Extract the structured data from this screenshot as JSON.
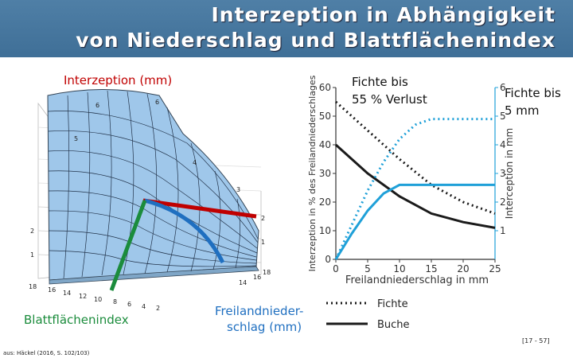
{
  "slide": {
    "title_line1": "Interzeption in Abhängigkeit",
    "title_line2": "von Niederschlag und Blattflächenindex",
    "label_interzeption": "Interzeption (mm)",
    "label_blattflaechenindex": "Blattflächenindex",
    "label_freiland": "Freilandnieder-",
    "label_freiland2": "schlag (mm)",
    "annotation_fichte_55": "Fichte bis",
    "annotation_fichte_55b": "55 % Verlust",
    "annotation_fichte_5mm": "Fichte bis",
    "annotation_fichte_5mmb": "5 mm",
    "source": "aus: Häckel (2016, S. 102/103)",
    "page_ref": "[17 - 57]"
  },
  "surface3d": {
    "lai_ticks": [
      "18",
      "16",
      "14",
      "12",
      "10",
      "8",
      "6",
      "4",
      "2"
    ],
    "precip_ticks": [
      "18",
      "16",
      "14"
    ],
    "z_ticks_left": [
      "1",
      "2"
    ],
    "surface_labels": [
      "6",
      "6",
      "5",
      "4",
      "3",
      "2",
      "1"
    ]
  },
  "chart_data": {
    "type": "line",
    "xlabel": "Freilandniederschlag in mm",
    "ylabel_left": "Interzeption in % des Freilandniederschlages",
    "ylabel_right": "Interception in mm",
    "xlim": [
      0,
      25
    ],
    "ylim_left": [
      0,
      60
    ],
    "ylim_right": [
      0,
      6
    ],
    "x_ticks": [
      "0",
      "5",
      "10",
      "15",
      "20",
      "25"
    ],
    "y_ticks_left": [
      "0",
      "10",
      "20",
      "30",
      "40",
      "50",
      "60"
    ],
    "y_ticks_right": [
      "1",
      "2",
      "3",
      "4",
      "5",
      "6"
    ],
    "legend": [
      {
        "name": "Fichte",
        "style": "dotted"
      },
      {
        "name": "Buche",
        "style": "solid"
      }
    ],
    "colors": {
      "percent": "#1a1a1a",
      "mm": "#1fa0d8"
    },
    "series": [
      {
        "legend": "Fichte",
        "axis": "left",
        "style": "dotted",
        "color": "#1a1a1a",
        "x": [
          0,
          5,
          10,
          15,
          20,
          25
        ],
        "y": [
          55,
          45,
          35,
          26,
          20,
          16
        ]
      },
      {
        "legend": "Buche",
        "axis": "left",
        "style": "solid",
        "color": "#1a1a1a",
        "x": [
          0,
          5,
          10,
          15,
          20,
          25
        ],
        "y": [
          40,
          30,
          22,
          16,
          13,
          11
        ]
      },
      {
        "legend": "Fichte",
        "axis": "right",
        "style": "dotted",
        "color": "#1fa0d8",
        "x": [
          0,
          2.5,
          5,
          7.5,
          10,
          12.5,
          15,
          20,
          25
        ],
        "y": [
          0,
          1.2,
          2.4,
          3.4,
          4.2,
          4.7,
          4.9,
          4.9,
          4.9
        ]
      },
      {
        "legend": "Buche",
        "axis": "right",
        "style": "solid",
        "color": "#1fa0d8",
        "x": [
          0,
          2.5,
          5,
          7.5,
          10,
          12.5,
          15,
          20,
          25
        ],
        "y": [
          0,
          0.9,
          1.7,
          2.3,
          2.6,
          2.6,
          2.6,
          2.6,
          2.6
        ]
      }
    ]
  }
}
